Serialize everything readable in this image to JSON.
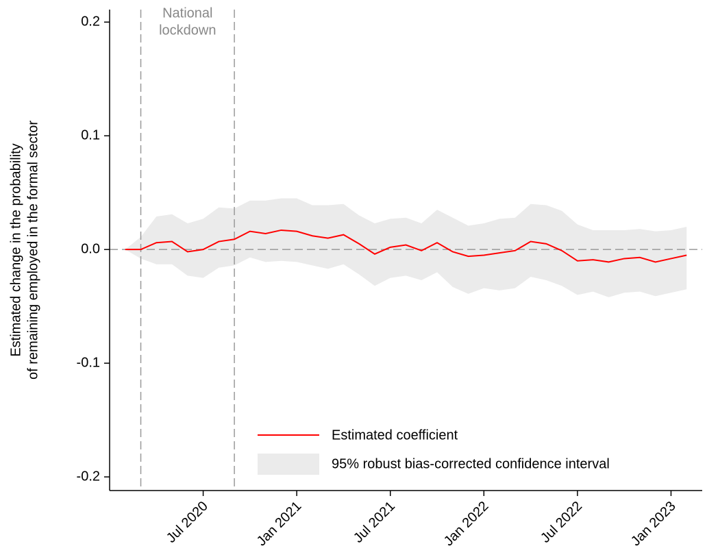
{
  "chart_data": {
    "type": "line",
    "ylabel": [
      "Estimated change in the probability",
      "of remaining employed in the formal sector"
    ],
    "annotation": [
      "National",
      "lockdown"
    ],
    "x": [
      "2020-02",
      "2020-03",
      "2020-04",
      "2020-05",
      "2020-06",
      "2020-07",
      "2020-08",
      "2020-09",
      "2020-10",
      "2020-11",
      "2020-12",
      "2021-01",
      "2021-02",
      "2021-03",
      "2021-04",
      "2021-05",
      "2021-06",
      "2021-07",
      "2021-08",
      "2021-09",
      "2021-10",
      "2021-11",
      "2021-12",
      "2022-01",
      "2022-02",
      "2022-03",
      "2022-04",
      "2022-05",
      "2022-06",
      "2022-07",
      "2022-08",
      "2022-09",
      "2022-10",
      "2022-11",
      "2022-12",
      "2023-01",
      "2023-02"
    ],
    "series": [
      {
        "name": "Estimated coefficient",
        "color": "#ff0000",
        "values": [
          0,
          0,
          0.006,
          0.007,
          -0.002,
          0,
          0.007,
          0.009,
          0.016,
          0.014,
          0.017,
          0.016,
          0.012,
          0.01,
          0.013,
          0.005,
          -0.004,
          0.002,
          0.004,
          -0.001,
          0.006,
          -0.002,
          -0.006,
          -0.005,
          -0.003,
          -0.001,
          0.007,
          0.005,
          -0.001,
          -0.01,
          -0.009,
          -0.011,
          -0.008,
          -0.007,
          -0.011,
          -0.008,
          -0.005
        ]
      }
    ],
    "interval": {
      "name": "95% robust bias-corrected confidence interval",
      "color": "#ebebeb",
      "upper": [
        0,
        0.011,
        0.029,
        0.031,
        0.023,
        0.027,
        0.037,
        0.036,
        0.043,
        0.043,
        0.045,
        0.045,
        0.039,
        0.039,
        0.04,
        0.03,
        0.023,
        0.027,
        0.028,
        0.023,
        0.035,
        0.028,
        0.021,
        0.023,
        0.027,
        0.028,
        0.04,
        0.039,
        0.034,
        0.022,
        0.017,
        0.017,
        0.017,
        0.018,
        0.016,
        0.017,
        0.02
      ],
      "lower": [
        0,
        -0.008,
        -0.013,
        -0.013,
        -0.023,
        -0.025,
        -0.016,
        -0.014,
        -0.007,
        -0.011,
        -0.01,
        -0.011,
        -0.014,
        -0.017,
        -0.013,
        -0.022,
        -0.032,
        -0.025,
        -0.023,
        -0.027,
        -0.02,
        -0.033,
        -0.039,
        -0.034,
        -0.036,
        -0.034,
        -0.024,
        -0.027,
        -0.032,
        -0.04,
        -0.037,
        -0.042,
        -0.038,
        -0.037,
        -0.041,
        -0.038,
        -0.035
      ]
    },
    "xlim": [
      "2020-01",
      "2023-03"
    ],
    "xticks": [
      {
        "value": "2020-07",
        "label": "Jul 2020"
      },
      {
        "value": "2021-01",
        "label": "Jan 2021"
      },
      {
        "value": "2021-07",
        "label": "Jul 2021"
      },
      {
        "value": "2022-01",
        "label": "Jan 2022"
      },
      {
        "value": "2022-07",
        "label": "Jul 2022"
      },
      {
        "value": "2023-01",
        "label": "Jan 2023"
      }
    ],
    "ylim": [
      -0.212,
      0.211
    ],
    "yticks": [
      -0.2,
      -0.1,
      {
        "value": 0,
        "label": "0.0"
      },
      0.1,
      0.2
    ],
    "hline": 0,
    "vlines": [
      "2020-03",
      "2020-09"
    ],
    "grid": false
  }
}
